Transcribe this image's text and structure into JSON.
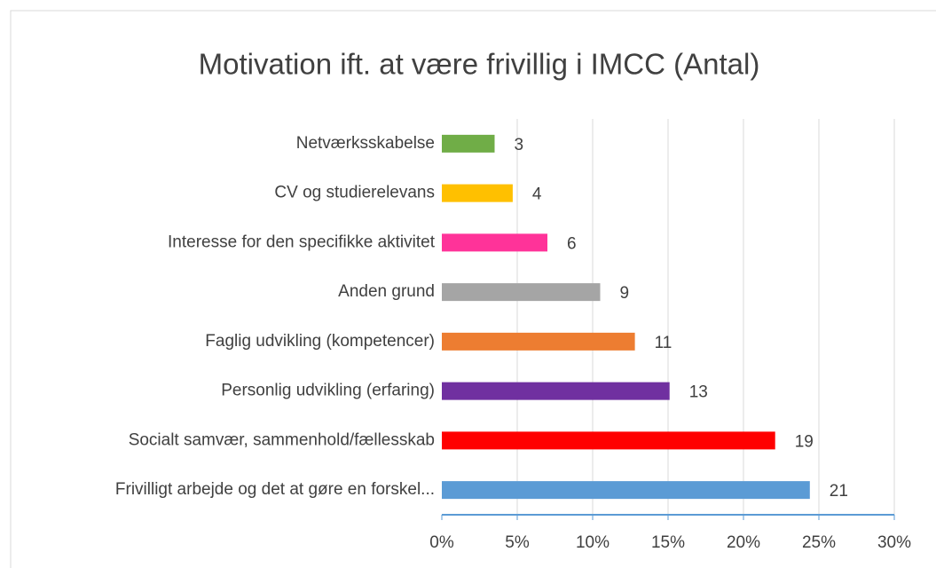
{
  "chart_data": {
    "type": "barh",
    "title": "Motivation ift. at være frivillig i IMCC (Antal)",
    "categories": [
      "Netværksskabelse",
      "CV og studierelevans",
      "Interesse for den specifikke aktivitet",
      "Anden grund",
      "Faglig udvikling (kompetencer)",
      "Personlig udvikling (erfaring)",
      "Socialt samvær, sammenhold/fællesskab",
      "Frivilligt arbejde og det at gøre en forskel..."
    ],
    "values": [
      3.5,
      4.7,
      7.0,
      10.5,
      12.8,
      15.1,
      22.1,
      24.4
    ],
    "counts": [
      3,
      4,
      6,
      9,
      11,
      13,
      19,
      21
    ],
    "colors": [
      "#70ad47",
      "#ffc000",
      "#ff3399",
      "#a5a5a5",
      "#ed7d31",
      "#7030a0",
      "#ff0000",
      "#5b9bd5"
    ],
    "xlim": [
      0,
      30
    ],
    "xticks": [
      {
        "value": 0,
        "label": "0%"
      },
      {
        "value": 5,
        "label": "5%"
      },
      {
        "value": 10,
        "label": "10%"
      },
      {
        "value": 15,
        "label": "15%"
      },
      {
        "value": 20,
        "label": "20%"
      },
      {
        "value": 25,
        "label": "25%"
      },
      {
        "value": 30,
        "label": "30%"
      }
    ],
    "grid": true
  }
}
